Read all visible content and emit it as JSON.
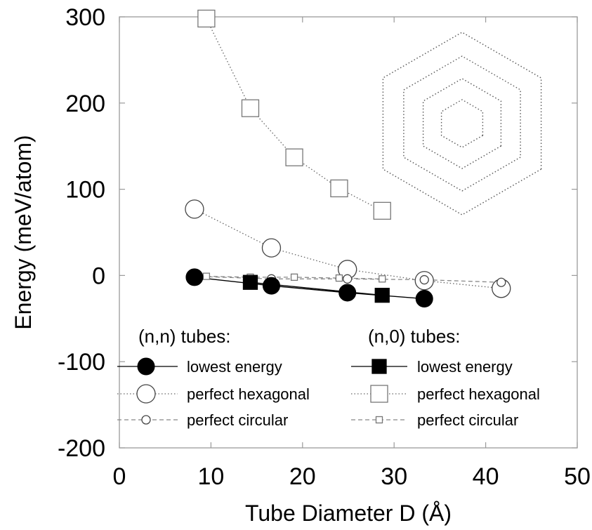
{
  "chart_data": {
    "type": "scatter",
    "xlabel": "Tube Diameter D (Å)",
    "ylabel": "Energy  (meV/atom)",
    "xlim": [
      0,
      50
    ],
    "ylim": [
      -200,
      300
    ],
    "xticks": [
      0,
      10,
      20,
      30,
      40,
      50
    ],
    "yticks": [
      -200,
      -100,
      0,
      100,
      200,
      300
    ],
    "grid": false,
    "legend_placement": "bottom",
    "legend_groups": [
      {
        "title": "(n,n) tubes:",
        "family": "nn"
      },
      {
        "title": "(n,0) tubes:",
        "family": "n0"
      }
    ],
    "series": [
      {
        "name": "lowest energy",
        "family": "nn",
        "marker": "circle",
        "fill": "filled",
        "line": "solid",
        "x": [
          8.2,
          16.6,
          24.9,
          33.3
        ],
        "y": [
          -2,
          -12,
          -20,
          -27
        ]
      },
      {
        "name": "perfect hexagonal",
        "family": "nn",
        "marker": "circle",
        "fill": "open",
        "line": "dotted",
        "x": [
          8.2,
          16.6,
          24.9,
          33.3,
          41.7
        ],
        "y": [
          77,
          32,
          7,
          -6,
          -15
        ]
      },
      {
        "name": "perfect circular",
        "family": "nn",
        "marker": "circle",
        "fill": "open-small",
        "line": "dashed",
        "x": [
          8.2,
          16.6,
          24.9,
          33.3,
          41.7
        ],
        "y": [
          -1,
          -4,
          -4,
          -5,
          -8
        ]
      },
      {
        "name": "lowest energy",
        "family": "n0",
        "marker": "square",
        "fill": "filled",
        "line": "solid",
        "x": [
          14.3,
          28.7
        ],
        "y": [
          -8,
          -23
        ]
      },
      {
        "name": "perfect hexagonal",
        "family": "n0",
        "marker": "square",
        "fill": "open",
        "line": "dotted",
        "x": [
          9.5,
          14.3,
          19.1,
          24.0,
          28.7
        ],
        "y": [
          298,
          194,
          137,
          101,
          75
        ]
      },
      {
        "name": "perfect circular",
        "family": "n0",
        "marker": "square",
        "fill": "open-small",
        "line": "dashed",
        "x": [
          9.5,
          14.3,
          19.1,
          24.0,
          28.7
        ],
        "y": [
          -1,
          -2,
          -2,
          -3,
          -4
        ]
      }
    ],
    "inset": "concentric hexagonal tube cross-sections"
  }
}
